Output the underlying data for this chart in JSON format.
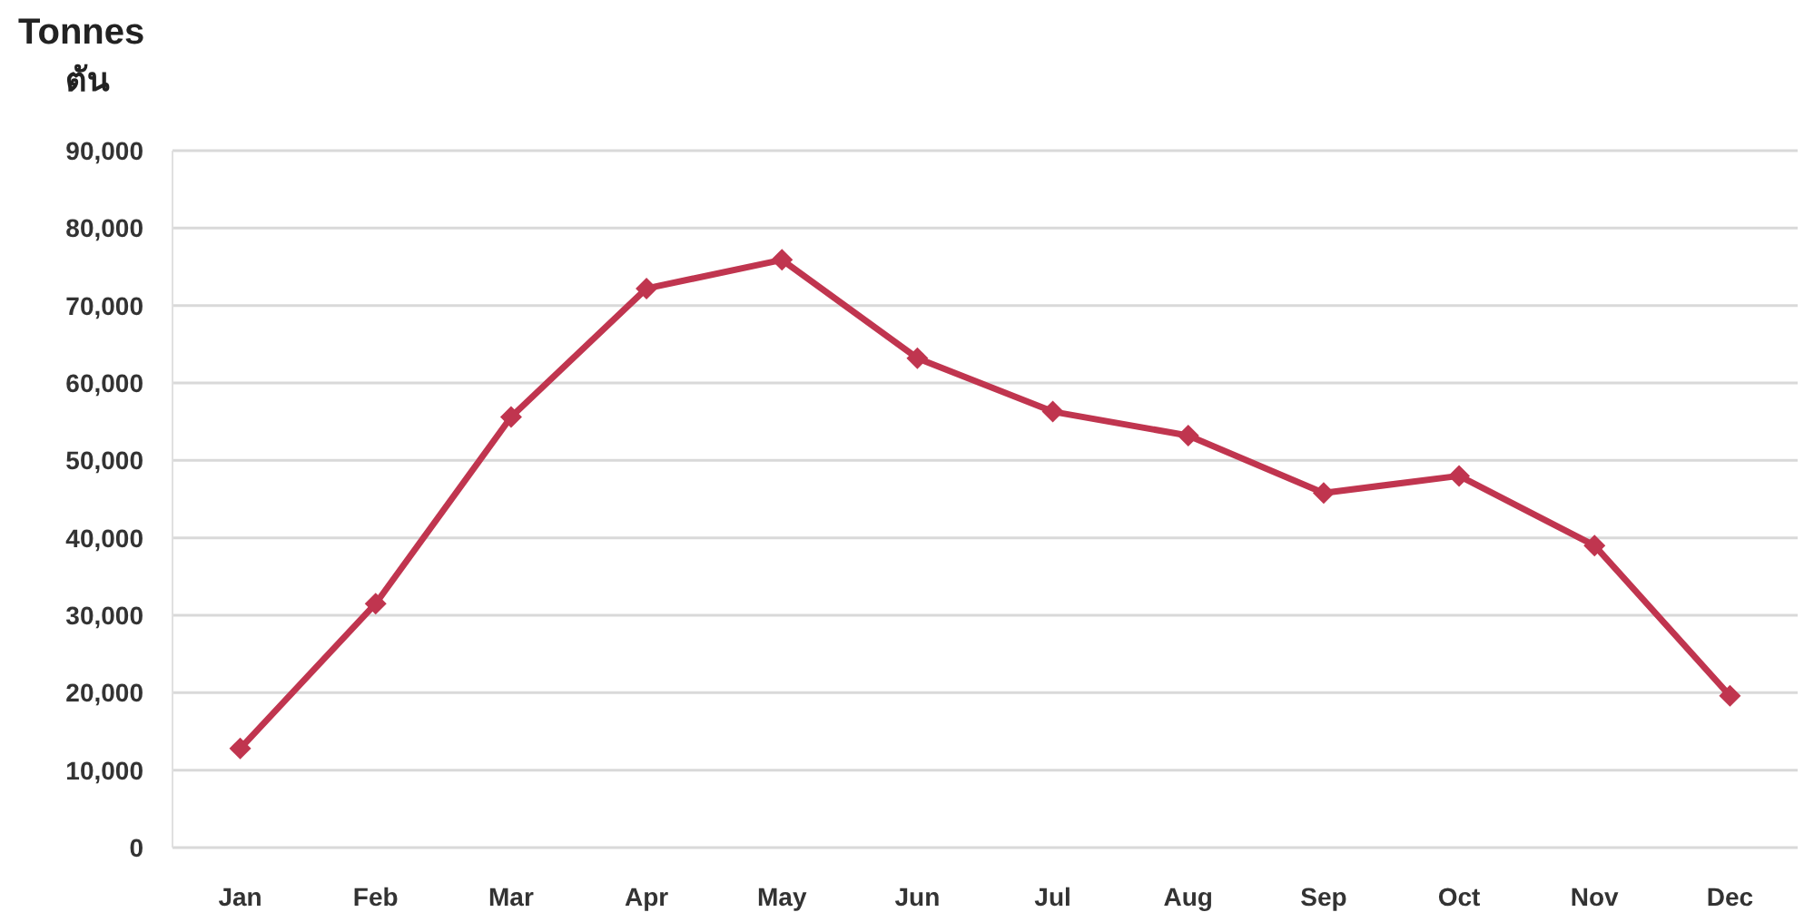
{
  "chart_data": {
    "type": "line",
    "ylabel": "Tonnes",
    "subtitle": "ตัน",
    "categories": [
      "Jan",
      "Feb",
      "Mar",
      "Apr",
      "May",
      "Jun",
      "Jul",
      "Aug",
      "Sep",
      "Oct",
      "Nov",
      "Dec"
    ],
    "series": [
      {
        "color": "#c0354f",
        "values": [
          12800,
          31500,
          55600,
          72200,
          75900,
          63200,
          56300,
          53200,
          45800,
          48000,
          39000,
          19600
        ]
      }
    ],
    "ylim": [
      0,
      90000
    ],
    "yticks": [
      {
        "value": 0,
        "label": "0"
      },
      {
        "value": 10000,
        "label": "10,000"
      },
      {
        "value": 20000,
        "label": "20,000"
      },
      {
        "value": 30000,
        "label": "30,000"
      },
      {
        "value": 40000,
        "label": "40,000"
      },
      {
        "value": 50000,
        "label": "50,000"
      },
      {
        "value": 60000,
        "label": "60,000"
      },
      {
        "value": 70000,
        "label": "70,000"
      },
      {
        "value": 80000,
        "label": "80,000"
      },
      {
        "value": 90000,
        "label": "90,000"
      }
    ],
    "grid": "y",
    "marker": "diamond",
    "line_style": "solid"
  }
}
